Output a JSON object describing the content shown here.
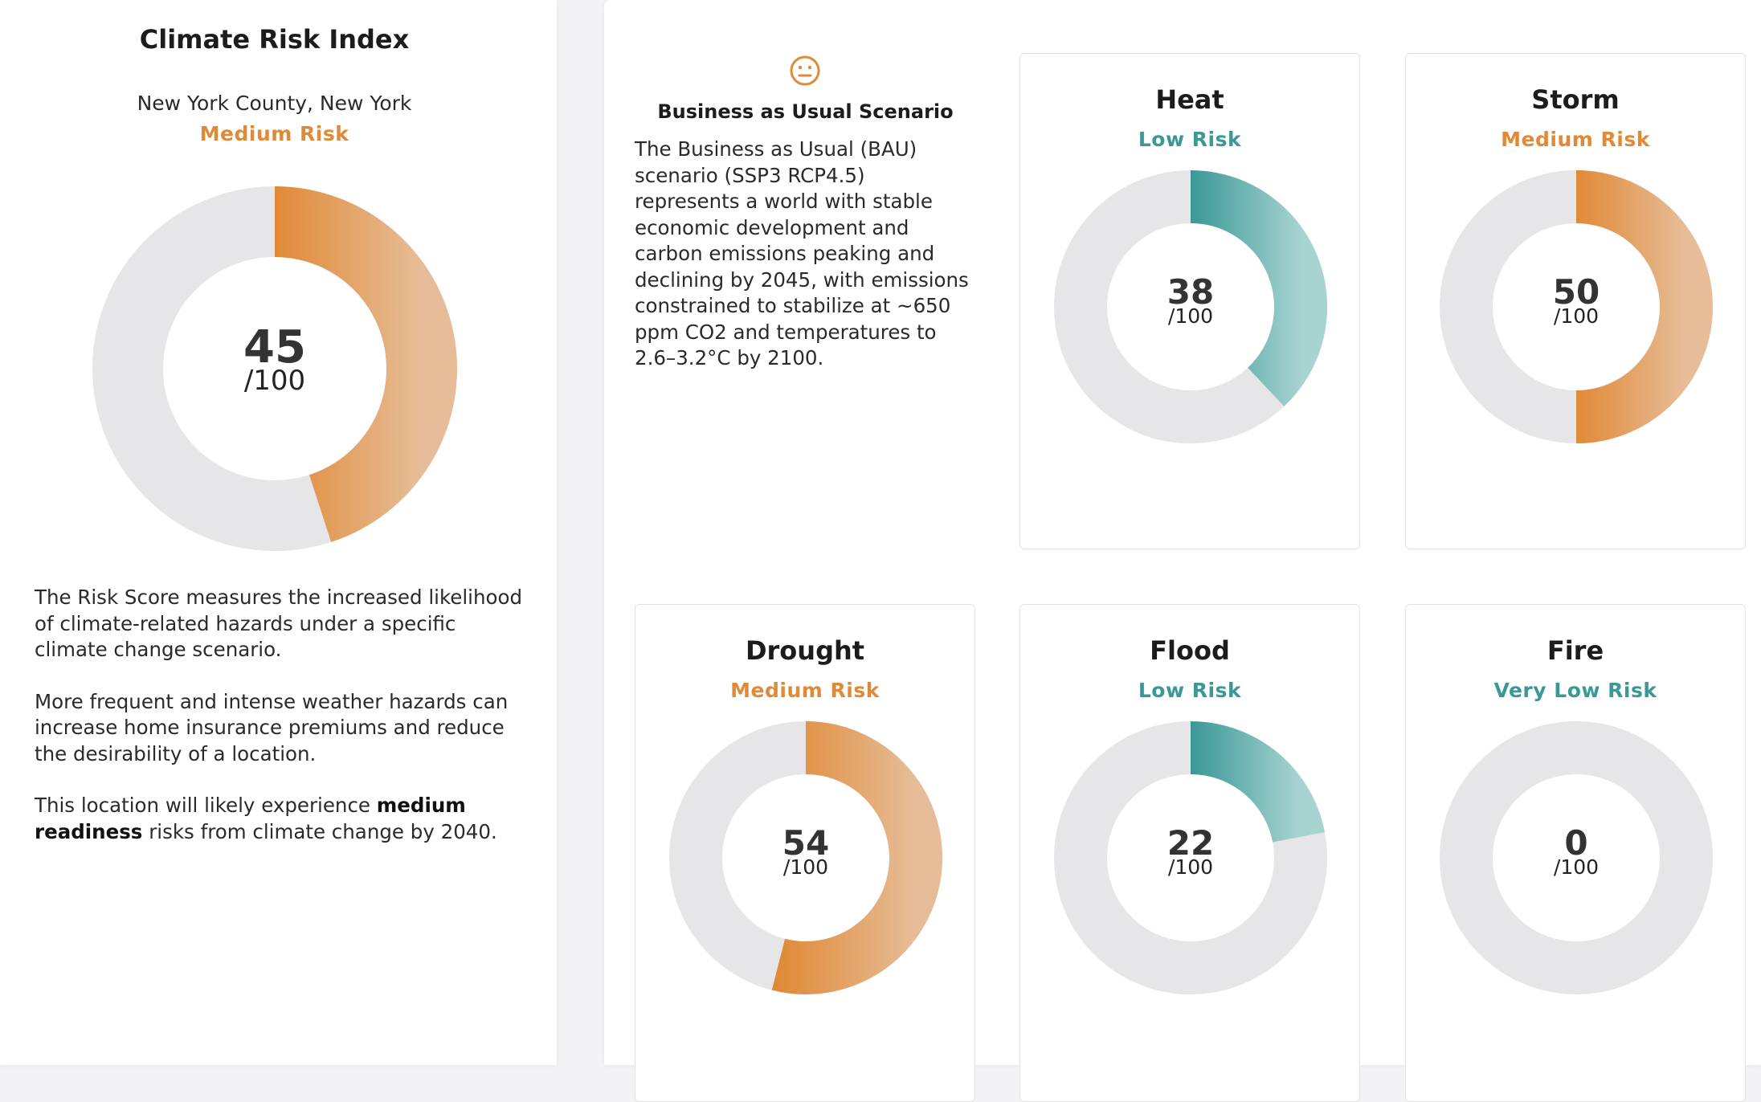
{
  "overall": {
    "title": "Climate Risk Index",
    "location": "New York County, New York",
    "risk_label": "Medium Risk",
    "score": 45,
    "denominator": "/100",
    "description_1": "The Risk Score measures the increased likelihood of climate-related hazards under a specific climate change scenario.",
    "description_2": "More frequent and intense weather hazards can increase home insurance premiums and reduce the desirability of a location.",
    "description_3_prefix": "This location will likely experience ",
    "description_3_bold": "medium readiness",
    "description_3_suffix": " risks from climate change by 2040."
  },
  "scenario": {
    "icon": "neutral-face-icon",
    "title": "Business as Usual Scenario",
    "description": "The Business as Usual (BAU) scenario (SSP3 RCP4.5) represents a world with stable economic development and carbon emissions peaking and declining by 2045, with emissions constrained to stabilize at ~650 ppm CO2 and temperatures to 2.6–3.2°C by 2100."
  },
  "hazards": {
    "heat": {
      "title": "Heat",
      "risk_label": "Low Risk",
      "score": 38,
      "color": "teal"
    },
    "storm": {
      "title": "Storm",
      "risk_label": "Medium Risk",
      "score": 50,
      "color": "orange"
    },
    "drought": {
      "title": "Drought",
      "risk_label": "Medium Risk",
      "score": 54,
      "color": "orange"
    },
    "flood": {
      "title": "Flood",
      "risk_label": "Low Risk",
      "score": 22,
      "color": "teal"
    },
    "fire": {
      "title": "Fire",
      "risk_label": "Very Low Risk",
      "score": 0,
      "color": "teal"
    }
  },
  "colors": {
    "orange_start": "#e08a37",
    "orange_end": "#e6bd98",
    "teal_start": "#3a9896",
    "teal_end": "#a7d3d1",
    "track": "#e6e6e8"
  }
}
